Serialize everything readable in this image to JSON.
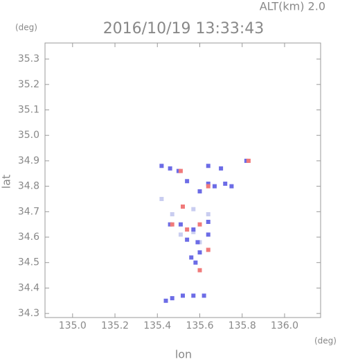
{
  "chart_data": {
    "type": "scatter",
    "title": "2016/10/19 13:33:43",
    "subtitle": "ALT(km) 2.0",
    "ylabel": "lat",
    "xlabel": "lon",
    "yunit": "(deg)",
    "xunit": "(deg)",
    "xlim": [
      134.87,
      136.17
    ],
    "ylim": [
      34.284,
      35.363
    ],
    "xticks": [
      {
        "value": 135.0,
        "label": "135.0"
      },
      135.2,
      135.4,
      135.6,
      135.8,
      {
        "value": 136.0,
        "label": "136.0"
      }
    ],
    "yticks": [
      34.3,
      34.4,
      34.5,
      34.6,
      34.7,
      34.8,
      34.9,
      {
        "value": 35.0,
        "label": "35.0"
      },
      35.1,
      35.2,
      35.3
    ],
    "grid": false,
    "series": [
      {
        "color": "#c9cdf0",
        "x": [
          135.42,
          135.57,
          135.6,
          135.57,
          135.64,
          135.51,
          135.47
        ],
        "y": [
          34.75,
          34.62,
          34.58,
          34.71,
          34.69,
          34.61,
          34.69
        ]
      },
      {
        "color": "#6c6ce6",
        "x": [
          135.42,
          135.46,
          135.5,
          135.64,
          135.7,
          135.82,
          135.54,
          135.64,
          135.72,
          135.75,
          135.46,
          135.51,
          135.57,
          135.64,
          135.54,
          135.59,
          135.64,
          135.56,
          135.6,
          135.58,
          135.47,
          135.52,
          135.57,
          135.44,
          135.62,
          135.67,
          135.6
        ],
        "y": [
          34.88,
          34.87,
          34.86,
          34.88,
          34.87,
          34.9,
          34.82,
          34.81,
          34.81,
          34.8,
          34.65,
          34.65,
          34.63,
          34.66,
          34.59,
          34.58,
          34.61,
          34.52,
          34.54,
          34.5,
          34.36,
          34.37,
          34.37,
          34.35,
          34.37,
          34.8,
          34.78
        ]
      },
      {
        "color": "#f07a7a",
        "x": [
          135.52,
          135.47,
          135.6,
          135.83,
          135.6,
          135.54,
          135.64,
          135.51,
          135.64
        ],
        "y": [
          34.72,
          34.65,
          34.65,
          34.9,
          34.47,
          34.63,
          34.8,
          34.86,
          34.55
        ]
      }
    ]
  }
}
